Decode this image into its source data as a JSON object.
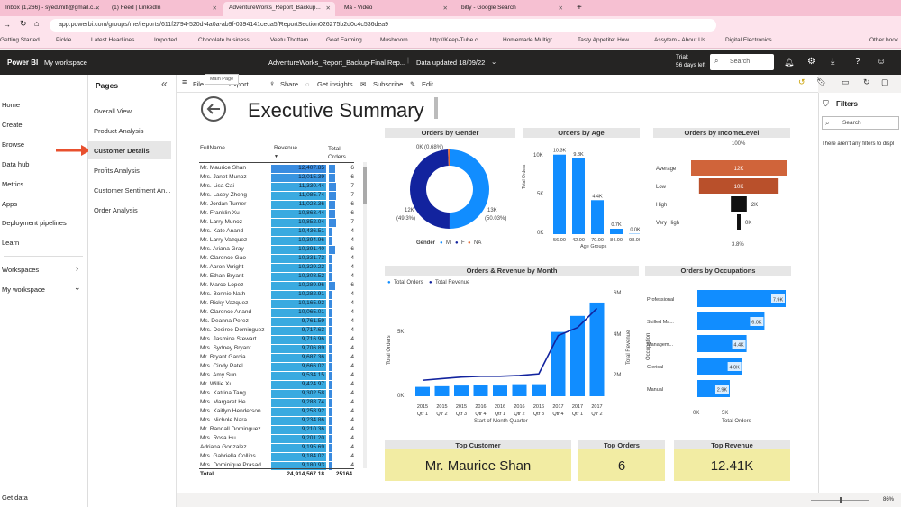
{
  "browser": {
    "tabs": [
      {
        "title": "Inbox (1,266) - syed.mitt@gmail.c..."
      },
      {
        "title": "(1) Feed | LinkedIn"
      },
      {
        "title": "AdventureWorks_Report_Backup..."
      },
      {
        "title": "Ma - Video"
      },
      {
        "title": "bitly - Google Search"
      }
    ],
    "new_tab": "+",
    "url": "app.powerbi.com/groups/me/reports/611f2794-520d-4a0a-ab9f-0394141ceca5/ReportSection026275b2d0c4c536dea9",
    "bookmarks": [
      "Getting Started",
      "Pickle",
      "Latest Headlines",
      "Imported",
      "Chocolate business",
      "Veetu Thottam",
      "Goat Farming",
      "Mushroom",
      "http://Keep-Tube.c...",
      "Homemade Multigr...",
      "Tasty Appetite: How...",
      "Assytem - About Us",
      "Digital Electronics...",
      "Other book"
    ]
  },
  "header": {
    "app": "Power BI",
    "workspace": "My workspace",
    "report_title": "AdventureWorks_Report_Backup-Final Rep...",
    "updated": "Data updated 18/09/22",
    "trial": "Trial:",
    "trial_days": "56 days left",
    "search_placeholder": "Search"
  },
  "leftnav": {
    "items": [
      "Home",
      "Create",
      "Browse",
      "Data hub",
      "Metrics",
      "Apps",
      "Deployment pipelines",
      "Learn"
    ],
    "workspaces": "Workspaces",
    "my_workspace": "My workspace",
    "get_data": "Get data"
  },
  "pages": {
    "title": "Pages",
    "items": [
      "Overall View",
      "Product Analysis",
      "Customer Details",
      "Profits Analysis",
      "Customer Sentiment An...",
      "Order Analysis"
    ],
    "selected": "Customer Details"
  },
  "toolbar": {
    "file": "File",
    "export": "Export",
    "share": "Share",
    "insights": "Get insights",
    "subscribe": "Subscribe",
    "edit": "Edit",
    "more": "...",
    "tooltip": "Main Page"
  },
  "report": {
    "title": "Executive Summary",
    "table": {
      "headers": [
        "FullName",
        "Revenue",
        "Total Orders"
      ],
      "rows": [
        [
          "Mr. Maurice Shan",
          "12,407.85",
          "6"
        ],
        [
          "Mrs. Janet Munoz",
          "12,015.39",
          "6"
        ],
        [
          "Mrs. Lisa Cai",
          "11,330.44",
          "7"
        ],
        [
          "Mrs. Lacey Zheng",
          "11,085.74",
          "7"
        ],
        [
          "Mr. Jordan Turner",
          "11,023.36",
          "6"
        ],
        [
          "Mr. Franklin Xu",
          "10,863.44",
          "6"
        ],
        [
          "Mr. Larry Munoz",
          "10,852.04",
          "7"
        ],
        [
          "Mrs. Kate Anand",
          "10,436.51",
          "4"
        ],
        [
          "Mr. Larry Vazquez",
          "10,394.96",
          "4"
        ],
        [
          "Mrs. Ariana Gray",
          "10,391.40",
          "6"
        ],
        [
          "Mr. Clarence Gao",
          "10,331.73",
          "4"
        ],
        [
          "Mr. Aaron Wright",
          "10,329.22",
          "4"
        ],
        [
          "Mr. Ethan Bryant",
          "10,308.52",
          "4"
        ],
        [
          "Mr. Marco Lopez",
          "10,289.96",
          "6"
        ],
        [
          "Mrs. Bonnie Nath",
          "10,282.91",
          "4"
        ],
        [
          "Mr. Ricky Vazquez",
          "10,165.92",
          "4"
        ],
        [
          "Mr. Clarence Anand",
          "10,065.01",
          "4"
        ],
        [
          "Ms. Deanna Perez",
          "9,761.59",
          "4"
        ],
        [
          "Mrs. Desiree Dominguez",
          "9,717.63",
          "4"
        ],
        [
          "Mrs. Jasmine Stewart",
          "9,716.96",
          "4"
        ],
        [
          "Mrs. Sydney Bryant",
          "9,706.89",
          "4"
        ],
        [
          "Mr. Bryant Garcia",
          "9,687.36",
          "4"
        ],
        [
          "Mrs. Cindy Patel",
          "9,666.02",
          "4"
        ],
        [
          "Mrs. Amy Sun",
          "9,534.15",
          "4"
        ],
        [
          "Mr. Willie Xu",
          "9,424.97",
          "4"
        ],
        [
          "Mrs. Katrina Tang",
          "9,302.58",
          "4"
        ],
        [
          "Mrs. Margaret He",
          "9,288.74",
          "4"
        ],
        [
          "Mrs. Kaitlyn Henderson",
          "9,258.92",
          "4"
        ],
        [
          "Mrs. Nichole Nara",
          "9,234.86",
          "4"
        ],
        [
          "Mr. Randall Dominguez",
          "9,210.36",
          "4"
        ],
        [
          "Mrs. Rosa Hu",
          "9,201.20",
          "4"
        ],
        [
          "Adriana Gonzalez",
          "9,195.69",
          "4"
        ],
        [
          "Mrs. Gabriella Collins",
          "9,184.02",
          "4"
        ],
        [
          "Mrs. Dominique Prasad",
          "9,180.93",
          "4"
        ]
      ],
      "total_label": "Total",
      "total_revenue": "24,914,567.18",
      "total_orders": "25164"
    },
    "gender": {
      "title": "Orders by Gender",
      "label_top": "0K (0.68%)",
      "label_left": "12K",
      "label_left_pct": "(49.3%)",
      "label_right": "13K",
      "label_right_pct": "(50.03%)",
      "legend_title": "Gender",
      "legend": [
        "M",
        "F",
        "NA"
      ],
      "colors": [
        "#118dff",
        "#12239e",
        "#e66c37"
      ]
    },
    "age": {
      "title": "Orders by Age",
      "ylabel": "Total Orders",
      "xlabel": "Age Groups",
      "yticks": [
        "10K",
        "5K",
        "0K"
      ],
      "values": [
        {
          "cat": "56.00",
          "label": "10.3K",
          "v": 10.3
        },
        {
          "cat": "42.00",
          "label": "9.8K",
          "v": 9.8
        },
        {
          "cat": "70.00",
          "label": "4.4K",
          "v": 4.4
        },
        {
          "cat": "84.00",
          "label": "0.7K",
          "v": 0.7
        },
        {
          "cat": "98.00",
          "label": "0.0K",
          "v": 0.04
        }
      ]
    },
    "income": {
      "title": "Orders by IncomeLevel",
      "top_label": "100%",
      "bottom_label": "3.8%",
      "items": [
        {
          "name": "Average",
          "label": "12K",
          "v": 12,
          "color": "#d0643a"
        },
        {
          "name": "Low",
          "label": "10K",
          "v": 10,
          "color": "#b9502b"
        },
        {
          "name": "High",
          "label": "2K",
          "v": 2,
          "color": "#111111"
        },
        {
          "name": "Very High",
          "label": "0K",
          "v": 0.45,
          "color": "#111111"
        }
      ]
    },
    "monthly": {
      "title": "Orders & Revenue by Month",
      "legend": [
        "Total Orders",
        "Total Revenue"
      ],
      "ylabel_left": "Total Orders",
      "ylabel_right": "Total Revenue",
      "yticks_left": [
        "5K",
        "0K"
      ],
      "yticks_right": [
        "6M",
        "4M",
        "2M"
      ],
      "xlabel": "Start of Month Quarter",
      "years": [
        "2015",
        "2015",
        "2015",
        "2016",
        "2016",
        "2016",
        "2016",
        "2017",
        "2017",
        "2017"
      ],
      "quarters": [
        "Qtr 1",
        "Qtr 2",
        "Qtr 3",
        "Qtr 4",
        "Qtr 1",
        "Qtr 2",
        "Qtr 3",
        "Qtr 4",
        "Qtr 1",
        "Qtr 2"
      ],
      "orders": [
        0.7,
        0.75,
        0.8,
        0.85,
        0.8,
        0.9,
        0.9,
        4.8,
        6.0,
        7.0
      ],
      "revenue": [
        1.0,
        1.1,
        1.2,
        1.25,
        1.25,
        1.3,
        1.4,
        3.8,
        4.3,
        5.5
      ]
    },
    "occupations": {
      "title": "Orders by Occupations",
      "ylabel": "Occupation",
      "xlabel": "Total Orders",
      "xticks": [
        "0K",
        "5K"
      ],
      "items": [
        {
          "name": "Professional",
          "label": "7.9K",
          "v": 7.9
        },
        {
          "name": "Skilled Ma...",
          "label": "6.0K",
          "v": 6.0
        },
        {
          "name": "Managem...",
          "label": "4.4K",
          "v": 4.4
        },
        {
          "name": "Clerical",
          "label": "4.0K",
          "v": 4.0
        },
        {
          "name": "Manual",
          "label": "2.9K",
          "v": 2.9
        }
      ]
    },
    "cards": [
      {
        "title": "Top Customer",
        "value": "Mr. Maurice Shan"
      },
      {
        "title": "Top Orders",
        "value": "6"
      },
      {
        "title": "Top Revenue",
        "value": "12.41K"
      }
    ]
  },
  "filters": {
    "title": "Filters",
    "search_placeholder": "Search",
    "empty": "There aren't any filters to displ"
  },
  "zoom": "86%"
}
